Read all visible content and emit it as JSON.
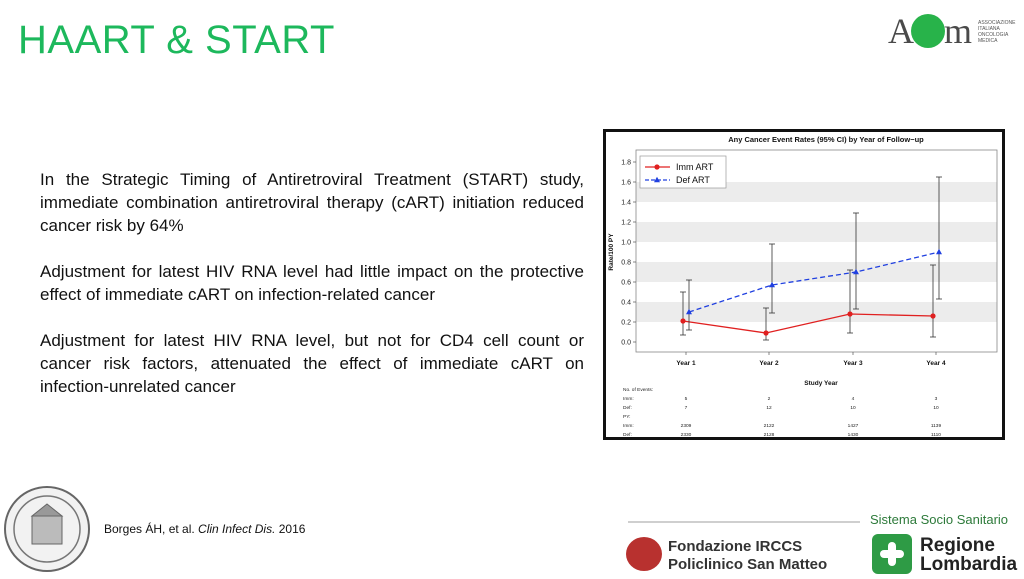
{
  "slide": {
    "title": "HAART & START",
    "paragraphs": [
      "In the Strategic Timing of Antiretroviral Treatment (START) study, immediate combination antiretroviral therapy (cART) initiation reduced cancer risk by 64%",
      "Adjustment for latest HIV RNA level had little impact on the protective effect of immediate cART on infection-related cancer",
      "Adjustment for latest HIV RNA level, but not for CD4 cell count or cancer risk factors, attenuated the effect of immediate cART on infection-unrelated cancer"
    ],
    "reference": {
      "authors": "Borges ÁH, et al. ",
      "journal": "Clin Infect Dis.",
      "year": " 2016"
    }
  },
  "logos": {
    "aiom_word": "AIOM",
    "aiom_sub": [
      "ASSOCIAZIONE",
      "ITALIANA",
      "ONCOLOGIA",
      "MEDICA"
    ],
    "sistema": "Sistema Socio Sanitario",
    "fondazione": [
      "Fondazione IRCCS",
      "Policlinico San Matteo"
    ],
    "regione": [
      "Regione",
      "Lombardia"
    ]
  },
  "colors": {
    "title": "#1db85c",
    "imm": "#e02020",
    "def": "#2040e0"
  },
  "chart_data": {
    "type": "line",
    "title": "Any Cancer Event Rates (95% CI) by Year of Follow−up",
    "xlabel": "Study Year",
    "ylabel": "Rate/100 PY",
    "categories": [
      "Year 1",
      "Year 2",
      "Year 3",
      "Year 4"
    ],
    "ylim": [
      0,
      1.8
    ],
    "yticks": [
      "0.0",
      "0.2",
      "0.4",
      "0.6",
      "0.8",
      "1.0",
      "1.2",
      "1.4",
      "1.6",
      "1.8"
    ],
    "legend_position": "top-left",
    "series": [
      {
        "name": "Imm ART",
        "color": "#e02020",
        "style": "solid",
        "marker": "circle",
        "values": [
          0.21,
          0.09,
          0.28,
          0.26
        ],
        "ci_low": [
          0.07,
          0.02,
          0.09,
          0.05
        ],
        "ci_high": [
          0.5,
          0.34,
          0.72,
          0.77
        ]
      },
      {
        "name": "Def ART",
        "color": "#2040e0",
        "style": "dashed",
        "marker": "triangle",
        "values": [
          0.3,
          0.57,
          0.7,
          0.9
        ],
        "ci_low": [
          0.12,
          0.29,
          0.33,
          0.43
        ],
        "ci_high": [
          0.62,
          0.98,
          1.29,
          1.65
        ]
      }
    ],
    "table": {
      "rows": [
        {
          "label": "No. of Events:",
          "values": [
            "",
            "",
            "",
            ""
          ]
        },
        {
          "label": "Imm:",
          "values": [
            "5",
            "2",
            "4",
            "3"
          ]
        },
        {
          "label": "Def:",
          "values": [
            "7",
            "12",
            "10",
            "10"
          ]
        },
        {
          "label": "PY:",
          "values": [
            "",
            "",
            "",
            ""
          ]
        },
        {
          "label": "Imm:",
          "values": [
            "2309",
            "2122",
            "1427",
            "1139"
          ]
        },
        {
          "label": "Def:",
          "values": [
            "2330",
            "2128",
            "1430",
            "1110"
          ]
        }
      ]
    }
  }
}
